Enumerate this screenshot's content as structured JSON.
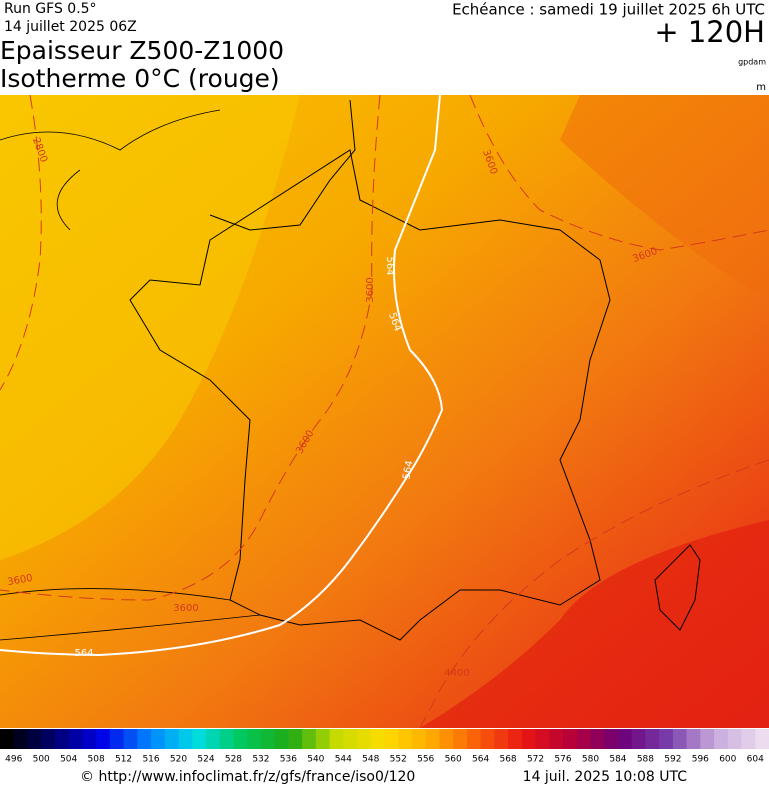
{
  "header": {
    "run": "Run GFS 0.5°",
    "date": "14 juillet 2025 06Z",
    "title_line1": "Epaisseur Z500-Z1000",
    "title_line2": "Isotherme 0°C (rouge)",
    "echeance": "Echéance : samedi 19 juillet 2025 6h UTC",
    "lead": "+ 120H",
    "unit_thickness": "gpdam",
    "unit_iso": "m"
  },
  "map": {
    "contour_labels": [
      "2800",
      "3600",
      "3600",
      "3600",
      "564",
      "564",
      "3600",
      "564",
      "3600",
      "3600",
      "564",
      "4400"
    ]
  },
  "colorbar": {
    "labels": [
      496,
      500,
      504,
      508,
      512,
      516,
      520,
      524,
      528,
      532,
      536,
      540,
      544,
      548,
      552,
      556,
      560,
      564,
      568,
      572,
      576,
      580,
      584,
      588,
      592,
      596,
      600,
      604
    ]
  },
  "footer": {
    "url": "© http://www.infoclimat.fr/z/gfs/france/iso0/120",
    "timestamp": "14 juil. 2025 10:08 UTC"
  }
}
